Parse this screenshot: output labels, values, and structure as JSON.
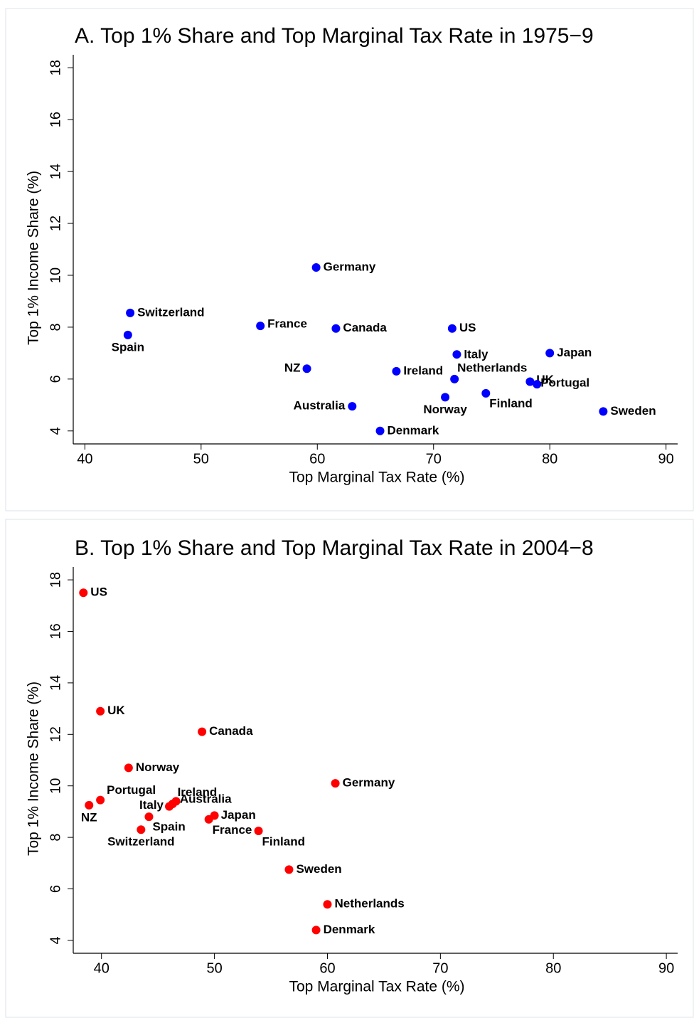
{
  "chart_data": [
    {
      "type": "scatter",
      "title": "A. Top 1% Share and Top Marginal Tax Rate in 1975−9",
      "x_label": "Top Marginal Tax Rate (%)",
      "y_label": "Top 1% Income Share (%)",
      "color": "#0000ff",
      "labels": [
        "Germany",
        "Switzerland",
        "Spain",
        "France",
        "Canada",
        "US",
        "Japan",
        "Italy",
        "Netherlands",
        "NZ",
        "Ireland",
        "UK",
        "Portugal",
        "Norway",
        "Finland",
        "Australia",
        "Sweden",
        "Denmark"
      ],
      "x": [
        59.9,
        43.9,
        43.7,
        55.1,
        61.6,
        71.6,
        80.0,
        72.0,
        71.8,
        59.1,
        66.8,
        78.3,
        78.9,
        71.0,
        74.5,
        63.0,
        84.6,
        65.4
      ],
      "values": [
        10.3,
        8.55,
        7.7,
        8.05,
        7.95,
        7.95,
        7.0,
        6.95,
        6.0,
        6.4,
        6.3,
        5.9,
        5.8,
        5.3,
        5.45,
        4.95,
        4.75,
        4.0
      ],
      "xlim": [
        39,
        91
      ],
      "ylim": [
        3.5,
        18.5
      ],
      "xticks": [
        40,
        50,
        60,
        70,
        80,
        90
      ],
      "yticks": [
        4,
        6,
        8,
        10,
        12,
        14,
        16,
        18
      ]
    },
    {
      "type": "scatter",
      "title": "B. Top 1% Share and Top Marginal Tax Rate in 2004−8",
      "x_label": "Top Marginal Tax Rate (%)",
      "y_label": "Top 1% Income Share (%)",
      "color": "#ff0000",
      "labels": [
        "US",
        "UK",
        "Canada",
        "Norway",
        "Germany",
        "Portugal",
        "NZ",
        "Spain",
        "Switzerland",
        "Italy",
        "Australia",
        "Ireland",
        "Japan",
        "France",
        "Finland",
        "Sweden",
        "Netherlands",
        "Denmark"
      ],
      "x": [
        38.4,
        39.9,
        48.9,
        42.4,
        60.7,
        39.9,
        38.9,
        44.2,
        43.5,
        46.0,
        46.3,
        46.6,
        50.0,
        49.5,
        53.9,
        56.6,
        60.0,
        59.0
      ],
      "values": [
        17.5,
        12.9,
        12.1,
        10.7,
        10.1,
        9.45,
        9.25,
        8.8,
        8.3,
        9.2,
        9.3,
        9.4,
        8.85,
        8.7,
        8.25,
        6.75,
        5.4,
        4.4
      ],
      "xlim": [
        37.5,
        91
      ],
      "ylim": [
        3.5,
        18.5
      ],
      "xticks": [
        40,
        50,
        60,
        70,
        80,
        90
      ],
      "yticks": [
        4,
        6,
        8,
        10,
        12,
        14,
        16,
        18
      ]
    }
  ]
}
